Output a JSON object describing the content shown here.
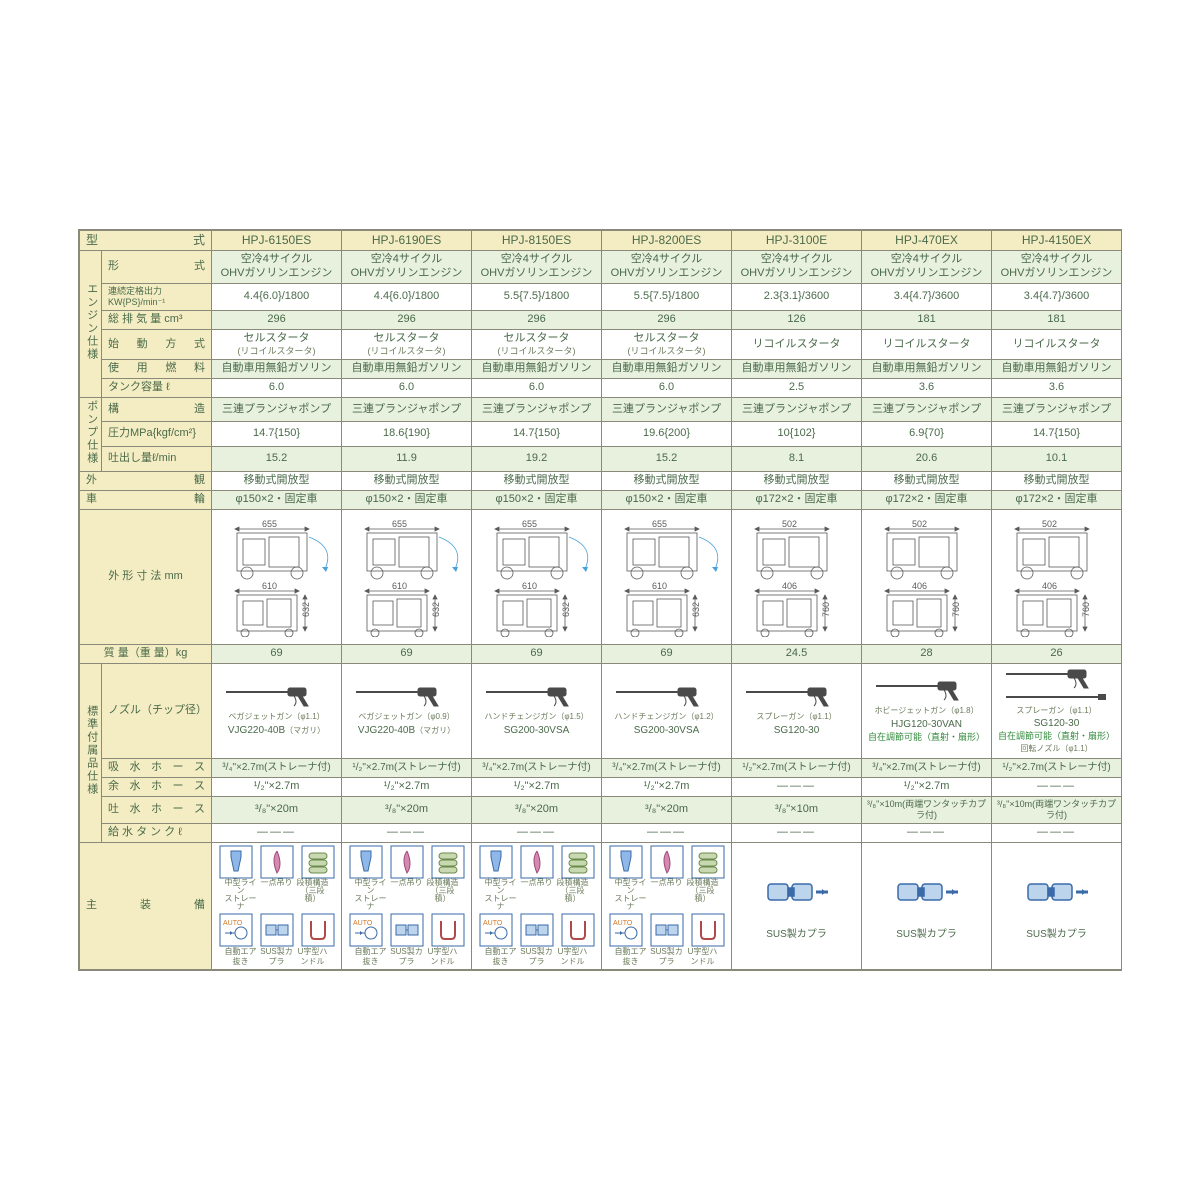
{
  "colors": {
    "header_bg": "#f4edc3",
    "rowA_bg": "#e8f0de",
    "rowB_bg": "#ffffff",
    "border": "#8a8a7a",
    "text": "#4a6a4a",
    "note_green": "#2f8a3a"
  },
  "header": {
    "type_label": "型　　　式",
    "models": [
      "HPJ-6150ES",
      "HPJ-6190ES",
      "HPJ-8150ES",
      "HPJ-8200ES",
      "HPJ-3100E",
      "HPJ-470EX",
      "HPJ-4150EX"
    ]
  },
  "groups": {
    "engine": "エンジン仕様",
    "pump": "ポンプ仕様",
    "accessory": "標準付属品仕様"
  },
  "rows": {
    "eng_type": {
      "label": "形　　　式",
      "cells": [
        "空冷4サイクル\nOHVガソリンエンジン",
        "空冷4サイクル\nOHVガソリンエンジン",
        "空冷4サイクル\nOHVガソリンエンジン",
        "空冷4サイクル\nOHVガソリンエンジン",
        "空冷4サイクル\nOHVガソリンエンジン",
        "空冷4サイクル\nOHVガソリンエンジン",
        "空冷4サイクル\nOHVガソリンエンジン"
      ]
    },
    "eng_output": {
      "label": "連続定格出力KW{PS}/min⁻¹",
      "cells": [
        "4.4{6.0}/1800",
        "4.4{6.0}/1800",
        "5.5{7.5}/1800",
        "5.5{7.5}/1800",
        "2.3{3.1}/3600",
        "3.4{4.7}/3600",
        "3.4{4.7}/3600"
      ]
    },
    "eng_disp": {
      "label": "総 排 気 量 cm³",
      "cells": [
        "296",
        "296",
        "296",
        "296",
        "126",
        "181",
        "181"
      ]
    },
    "eng_start": {
      "label": "始 動 方 式",
      "cells_main": [
        "セルスタータ",
        "セルスタータ",
        "セルスタータ",
        "セルスタータ",
        "リコイルスタータ",
        "リコイルスタータ",
        "リコイルスタータ"
      ],
      "cells_sub": [
        "(リコイルスタータ)",
        "(リコイルスタータ)",
        "(リコイルスタータ)",
        "(リコイルスタータ)",
        "",
        "",
        ""
      ]
    },
    "eng_fuel": {
      "label": "使 用 燃 料",
      "cells": [
        "自動車用無鉛ガソリン",
        "自動車用無鉛ガソリン",
        "自動車用無鉛ガソリン",
        "自動車用無鉛ガソリン",
        "自動車用無鉛ガソリン",
        "自動車用無鉛ガソリン",
        "自動車用無鉛ガソリン"
      ]
    },
    "eng_tank": {
      "label": "タンク容量 ℓ",
      "cells": [
        "6.0",
        "6.0",
        "6.0",
        "6.0",
        "2.5",
        "3.6",
        "3.6"
      ]
    },
    "pump_struct": {
      "label": "構　　　造",
      "cells": [
        "三連プランジャポンプ",
        "三連プランジャポンプ",
        "三連プランジャポンプ",
        "三連プランジャポンプ",
        "三連プランジャポンプ",
        "三連プランジャポンプ",
        "三連プランジャポンプ"
      ]
    },
    "pump_press": {
      "label": "圧力MPa{kgf/cm²}",
      "cells": [
        "14.7{150}",
        "18.6{190}",
        "14.7{150}",
        "19.6{200}",
        "10{102}",
        "6.9{70}",
        "14.7{150}"
      ]
    },
    "pump_flow": {
      "label": "吐出し量ℓ/min",
      "cells": [
        "15.2",
        "11.9",
        "19.2",
        "15.2",
        "8.1",
        "20.6",
        "10.1"
      ]
    },
    "appearance": {
      "label": "外　　　　　観",
      "cells": [
        "移動式開放型",
        "移動式開放型",
        "移動式開放型",
        "移動式開放型",
        "移動式開放型",
        "移動式開放型",
        "移動式開放型"
      ]
    },
    "wheels": {
      "label": "車　　　　　輪",
      "cells": [
        "φ150×2・固定車",
        "φ150×2・固定車",
        "φ150×2・固定車",
        "φ150×2・固定車",
        "φ172×2・固定車",
        "φ172×2・固定車",
        "φ172×2・固定車"
      ]
    },
    "dims": {
      "label": "外 形 寸 法 mm",
      "sets": [
        {
          "w_top": "655",
          "w_bot": "610",
          "h": "632"
        },
        {
          "w_top": "655",
          "w_bot": "610",
          "h": "632"
        },
        {
          "w_top": "655",
          "w_bot": "610",
          "h": "632"
        },
        {
          "w_top": "655",
          "w_bot": "610",
          "h": "632"
        },
        {
          "w_top": "502",
          "w_bot": "406",
          "h": "760"
        },
        {
          "w_top": "502",
          "w_bot": "406",
          "h": "760"
        },
        {
          "w_top": "502",
          "w_bot": "406",
          "h": "760"
        }
      ]
    },
    "mass": {
      "label": "質 量（重 量）kg",
      "cells": [
        "69",
        "69",
        "69",
        "69",
        "24.5",
        "28",
        "26"
      ]
    },
    "nozzle": {
      "label": "ノズル（チップ径）",
      "cells": [
        {
          "line1": "ベガジェットガン（φ1.1）",
          "line2": "VJG220-40B",
          "line3": "（マガリ）",
          "note": ""
        },
        {
          "line1": "ベガジェットガン（φ0.9）",
          "line2": "VJG220-40B",
          "line3": "（マガリ）",
          "note": ""
        },
        {
          "line1": "ハンドチェンジガン（φ1.5）",
          "line2": "SG200-30VSA",
          "line3": "",
          "note": ""
        },
        {
          "line1": "ハンドチェンジガン（φ1.2）",
          "line2": "SG200-30VSA",
          "line3": "",
          "note": ""
        },
        {
          "line1": "スプレーガン（φ1.1）",
          "line2": "SG120-30",
          "line3": "",
          "note": ""
        },
        {
          "line1": "ホビージェットガン（φ1.8）",
          "line2": "HJG120-30VAN",
          "line3": "",
          "note": "自在調節可能（直射・扇形）"
        },
        {
          "line1": "スプレーガン（φ1.1）",
          "line2": "SG120-30",
          "line3": "回転ノズル（φ1.1）",
          "note": "自在調節可能（直射・扇形）"
        }
      ]
    },
    "hose_suction": {
      "label": "吸 水 ホ ー ス",
      "cells": [
        "³/₄\"×2.7m(ストレーナ付)",
        "¹/₂\"×2.7m(ストレーナ付)",
        "³/₄\"×2.7m(ストレーナ付)",
        "³/₄\"×2.7m(ストレーナ付)",
        "¹/₂\"×2.7m(ストレーナ付)",
        "³/₄\"×2.7m(ストレーナ付)",
        "¹/₂\"×2.7m(ストレーナ付)"
      ]
    },
    "hose_extra": {
      "label": "余 水 ホ ー ス",
      "cells": [
        "¹/₂\"×2.7m",
        "¹/₂\"×2.7m",
        "¹/₂\"×2.7m",
        "¹/₂\"×2.7m",
        "———",
        "¹/₂\"×2.7m",
        "———"
      ]
    },
    "hose_disch": {
      "label": "吐 水 ホ ー ス",
      "cells": [
        "³/₈\"×20m",
        "³/₈\"×20m",
        "³/₈\"×20m",
        "³/₈\"×20m",
        "³/₈\"×10m",
        "³/₈\"×10m(両端ワンタッチカプラ付)",
        "³/₈\"×10m(両端ワンタッチカプラ付)"
      ]
    },
    "tank2": {
      "label": "給 水 タ ン ク ℓ",
      "cells": [
        "———",
        "———",
        "———",
        "———",
        "———",
        "———",
        "———"
      ]
    },
    "equip": {
      "label": "主　装　備",
      "full_set_caption_top": [
        "中型ライン\nストレーナ",
        "一点吊り",
        "段積構造\n（三段積）"
      ],
      "full_set_caption_bot": [
        "自動エア抜き",
        "SUS製カプラ",
        "U字型ハンドル"
      ],
      "auto_label": "AUTO",
      "simple_caption": "SUS製カプラ",
      "types": [
        "full",
        "full",
        "full",
        "full",
        "simple",
        "simple",
        "simple"
      ]
    }
  }
}
